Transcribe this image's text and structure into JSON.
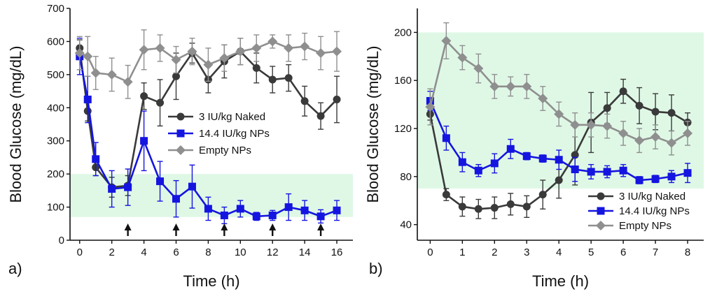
{
  "chart_data": [
    {
      "type": "line",
      "panel_label": "a)",
      "xlabel": "Time (h)",
      "ylabel": "Blood Glucose (mg/dL)",
      "xlim": [
        -0.6,
        17.0
      ],
      "ylim": [
        0,
        700
      ],
      "xticks": [
        0,
        2,
        4,
        6,
        8,
        10,
        12,
        14,
        16
      ],
      "yticks": [
        0,
        100,
        200,
        300,
        400,
        500,
        600,
        700
      ],
      "normal_range": [
        70,
        200
      ],
      "arrows_at": [
        3,
        6,
        9,
        12,
        15
      ],
      "legend_position": "center-right",
      "series": [
        {
          "name": "3 IU/kg Naked",
          "color": "#3a3a3a",
          "marker": "circle",
          "x": [
            0,
            0.5,
            1,
            2,
            3,
            4,
            5,
            6,
            7,
            8,
            9,
            10,
            11,
            12,
            13,
            14,
            15,
            16
          ],
          "y": [
            580,
            390,
            220,
            160,
            165,
            435,
            415,
            495,
            565,
            485,
            540,
            570,
            520,
            485,
            490,
            420,
            375,
            425
          ],
          "err": [
            25,
            30,
            25,
            30,
            30,
            40,
            70,
            70,
            30,
            40,
            50,
            40,
            45,
            40,
            40,
            45,
            40,
            70
          ]
        },
        {
          "name": "14.4 IU/kg NPs",
          "color": "#1515e0",
          "marker": "square",
          "x": [
            0,
            0.5,
            1,
            2,
            3,
            4,
            5,
            6,
            7,
            8,
            9,
            10,
            11,
            12,
            13,
            14,
            15,
            16
          ],
          "y": [
            555,
            425,
            245,
            155,
            160,
            300,
            178,
            125,
            162,
            95,
            75,
            95,
            72,
            75,
            100,
            90,
            72,
            90
          ],
          "err": [
            55,
            70,
            50,
            55,
            55,
            90,
            60,
            55,
            65,
            35,
            25,
            25,
            12,
            15,
            40,
            30,
            20,
            30
          ]
        },
        {
          "name": "Empty NPs",
          "color": "#8f8f8f",
          "marker": "diamond",
          "x": [
            0,
            0.5,
            1,
            2,
            3,
            4,
            5,
            6,
            7,
            8,
            9,
            10,
            11,
            12,
            13,
            14,
            15,
            16
          ],
          "y": [
            565,
            555,
            505,
            500,
            478,
            575,
            580,
            545,
            570,
            530,
            550,
            570,
            580,
            600,
            580,
            585,
            565,
            570
          ],
          "err": [
            50,
            60,
            50,
            50,
            50,
            60,
            40,
            40,
            40,
            50,
            40,
            40,
            40,
            20,
            40,
            40,
            50,
            60
          ]
        }
      ]
    },
    {
      "type": "line",
      "panel_label": "b)",
      "xlabel": "Time (h)",
      "ylabel": "Blood Glucose (mg/dL)",
      "xlim": [
        -0.4,
        8.5
      ],
      "ylim": [
        27,
        220
      ],
      "xticks": [
        0,
        1,
        2,
        3,
        4,
        5,
        6,
        7,
        8
      ],
      "yticks": [
        40,
        80,
        120,
        160,
        200
      ],
      "normal_range": [
        70,
        200
      ],
      "legend_position": "lower-right",
      "series": [
        {
          "name": "3 IU/kg Naked",
          "color": "#3a3a3a",
          "marker": "circle",
          "x": [
            0,
            0.5,
            1,
            1.5,
            2,
            2.5,
            3,
            3.5,
            4,
            4.5,
            5,
            5.5,
            6,
            6.5,
            7,
            7.5,
            8
          ],
          "y": [
            132,
            65,
            55,
            53,
            54,
            57,
            55,
            65,
            77,
            98,
            125,
            137,
            151,
            139,
            134,
            133,
            125
          ],
          "err": [
            5,
            5,
            8,
            8,
            9,
            9,
            9,
            12,
            15,
            25,
            25,
            13,
            10,
            15,
            15,
            15,
            8
          ]
        },
        {
          "name": "14.4 IU/kg NPs",
          "color": "#1515e0",
          "marker": "square",
          "x": [
            0,
            0.5,
            1,
            1.5,
            2,
            2.5,
            3,
            3.5,
            4,
            4.5,
            5,
            5.5,
            6,
            6.5,
            7,
            7.5,
            8
          ],
          "y": [
            143,
            112,
            92,
            85,
            91,
            103,
            97,
            95,
            94,
            86,
            84,
            84,
            85,
            77,
            78,
            80,
            83
          ],
          "err": [
            8,
            10,
            8,
            5,
            8,
            8,
            3,
            3,
            8,
            10,
            6,
            5,
            5,
            3,
            3,
            5,
            8
          ]
        },
        {
          "name": "Empty NPs",
          "color": "#8f8f8f",
          "marker": "diamond",
          "x": [
            0,
            0.5,
            1,
            1.5,
            2,
            2.5,
            3,
            3.5,
            4,
            4.5,
            5,
            5.5,
            6,
            6.5,
            7,
            7.5,
            8
          ],
          "y": [
            138,
            193,
            179,
            170,
            155,
            155,
            155,
            145,
            132,
            123,
            123,
            122,
            116,
            110,
            113,
            108,
            116
          ],
          "err": [
            15,
            15,
            10,
            12,
            10,
            8,
            10,
            10,
            10,
            10,
            10,
            10,
            10,
            10,
            10,
            10,
            10
          ]
        }
      ]
    }
  ]
}
